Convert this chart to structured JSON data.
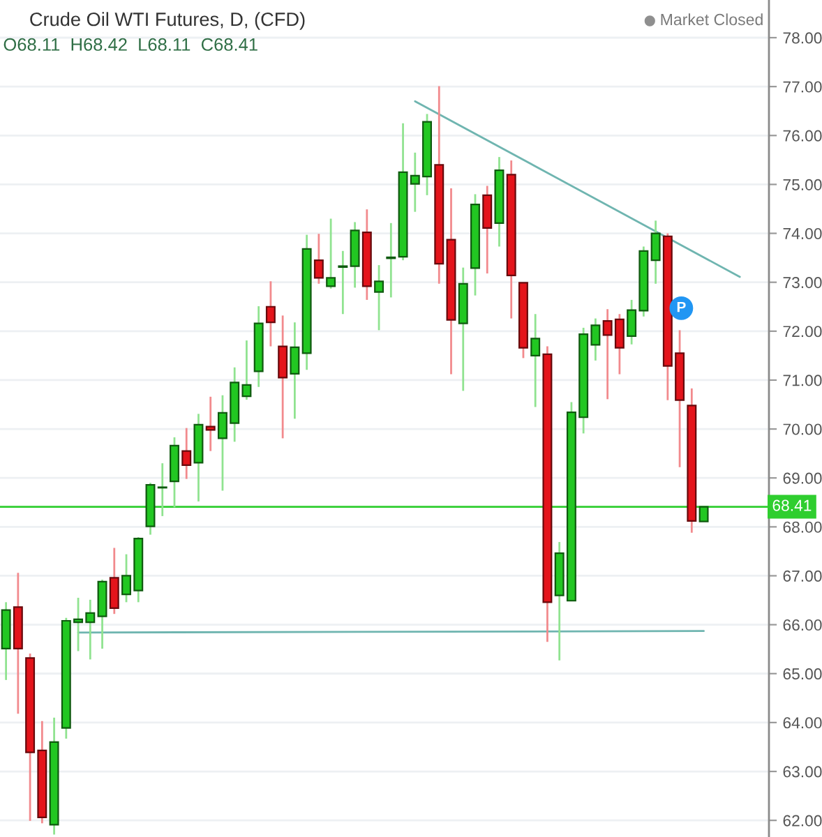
{
  "chart_data": {
    "type": "candlestick",
    "title": "Crude Oil WTI Futures, D, (CFD)",
    "subtitle": "O68.11  H68.42  L68.11  C68.41",
    "categories": [
      null,
      null,
      null,
      null,
      null,
      null,
      null,
      null,
      null,
      null,
      null,
      null,
      null,
      null,
      null,
      null,
      null,
      null,
      null,
      null,
      null,
      null,
      null,
      null,
      null,
      null,
      null,
      null,
      null,
      null,
      null,
      null,
      null,
      null,
      null,
      null,
      null,
      null,
      null,
      null,
      null,
      null,
      null,
      null,
      null,
      null,
      null,
      null,
      null,
      null,
      null,
      null,
      null,
      null,
      null,
      null,
      null,
      null,
      null,
      null,
      null,
      null
    ],
    "ohlc": [
      [
        65.51,
        66.46,
        64.87,
        66.3
      ],
      [
        66.36,
        67.06,
        64.18,
        65.51
      ],
      [
        65.32,
        65.41,
        61.99,
        63.39
      ],
      [
        63.43,
        64.03,
        61.94,
        62.06
      ],
      [
        61.91,
        64.1,
        61.71,
        63.6
      ],
      [
        63.89,
        66.14,
        63.67,
        66.08
      ],
      [
        66.05,
        66.55,
        65.46,
        66.11
      ],
      [
        66.05,
        66.51,
        65.29,
        66.24
      ],
      [
        66.17,
        66.92,
        65.51,
        66.88
      ],
      [
        66.96,
        67.57,
        66.22,
        66.34
      ],
      [
        66.62,
        67.44,
        66.46,
        67.0
      ],
      [
        66.7,
        67.79,
        66.46,
        67.76
      ],
      [
        68.01,
        68.9,
        67.84,
        68.86
      ],
      [
        68.8,
        69.3,
        68.22,
        68.81
      ],
      [
        68.93,
        69.83,
        68.4,
        69.66
      ],
      [
        69.55,
        70.02,
        68.98,
        69.26
      ],
      [
        69.31,
        70.31,
        68.52,
        70.09
      ],
      [
        70.05,
        70.66,
        69.55,
        69.98
      ],
      [
        69.81,
        70.69,
        68.74,
        70.33
      ],
      [
        70.12,
        71.26,
        69.74,
        70.95
      ],
      [
        70.67,
        71.81,
        70.6,
        70.9
      ],
      [
        71.18,
        72.51,
        70.86,
        72.16
      ],
      [
        72.5,
        73.02,
        71.69,
        72.18
      ],
      [
        71.69,
        72.32,
        69.81,
        71.05
      ],
      [
        71.13,
        72.18,
        70.21,
        71.67
      ],
      [
        71.55,
        73.97,
        71.21,
        73.68
      ],
      [
        73.45,
        73.99,
        72.97,
        73.09
      ],
      [
        72.92,
        74.3,
        72.87,
        73.09
      ],
      [
        73.31,
        73.64,
        72.35,
        73.33
      ],
      [
        73.33,
        74.23,
        72.89,
        74.06
      ],
      [
        74.02,
        74.49,
        72.64,
        72.92
      ],
      [
        72.8,
        73.35,
        72.02,
        73.02
      ],
      [
        73.49,
        74.21,
        72.69,
        73.51
      ],
      [
        73.52,
        76.25,
        73.45,
        75.25
      ],
      [
        75.01,
        75.65,
        74.44,
        75.18
      ],
      [
        75.16,
        76.44,
        74.78,
        76.28
      ],
      [
        75.4,
        77.01,
        72.97,
        73.38
      ],
      [
        73.87,
        74.92,
        71.12,
        72.23
      ],
      [
        72.16,
        73.3,
        70.78,
        72.97
      ],
      [
        73.29,
        74.8,
        72.73,
        74.59
      ],
      [
        74.78,
        74.97,
        73.18,
        74.11
      ],
      [
        74.21,
        75.56,
        73.73,
        75.29
      ],
      [
        75.2,
        75.49,
        72.26,
        73.14
      ],
      [
        72.99,
        72.99,
        71.45,
        71.66
      ],
      [
        71.5,
        72.35,
        70.45,
        71.85
      ],
      [
        71.53,
        71.69,
        65.65,
        66.46
      ],
      [
        66.6,
        67.69,
        65.27,
        67.46
      ],
      [
        66.49,
        70.55,
        66.49,
        70.34
      ],
      [
        70.24,
        72.07,
        69.91,
        71.94
      ],
      [
        71.72,
        72.26,
        71.4,
        72.12
      ],
      [
        72.21,
        72.45,
        70.61,
        71.92
      ],
      [
        72.24,
        72.35,
        71.12,
        71.66
      ],
      [
        71.9,
        72.64,
        71.73,
        72.43
      ],
      [
        72.42,
        73.73,
        72.3,
        73.64
      ],
      [
        73.45,
        74.26,
        72.97,
        74.0
      ],
      [
        73.94,
        74.0,
        70.59,
        71.29
      ],
      [
        71.55,
        72.02,
        69.22,
        70.59
      ],
      [
        70.48,
        70.83,
        67.88,
        68.12
      ],
      [
        68.11,
        68.42,
        68.11,
        68.41
      ],
      null,
      null,
      null
    ],
    "colors": [
      "#22c722",
      "#e4141b",
      "#e4141b",
      "#e4141b",
      "#22c722",
      "#22c722",
      "#22c722",
      "#22c722",
      "#22c722",
      "#e4141b",
      "#22c722",
      "#22c722",
      "#22c722",
      "#22c722",
      "#22c722",
      "#e4141b",
      "#22c722",
      "#e4141b",
      "#22c722",
      "#22c722",
      "#22c722",
      "#22c722",
      "#e4141b",
      "#e4141b",
      "#22c722",
      "#22c722",
      "#e4141b",
      "#22c722",
      "#22c722",
      "#22c722",
      "#e4141b",
      "#22c722",
      "#22c722",
      "#22c722",
      "#22c722",
      "#22c722",
      "#e4141b",
      "#e4141b",
      "#22c722",
      "#22c722",
      "#e4141b",
      "#22c722",
      "#e4141b",
      "#e4141b",
      "#22c722",
      "#e4141b",
      "#22c722",
      "#22c722",
      "#22c722",
      "#22c722",
      "#e4141b",
      "#e4141b",
      "#22c722",
      "#22c722",
      "#22c722",
      "#e4141b",
      "#e4141b",
      "#e4141b",
      "#22c722",
      null,
      null,
      null
    ],
    "series": [
      {
        "type": "line",
        "values": [
          null,
          null,
          null,
          null,
          null,
          null,
          null,
          null,
          null,
          null,
          null,
          null,
          null,
          null,
          null,
          null,
          null,
          null,
          null,
          null,
          null,
          null,
          null,
          null,
          null,
          null,
          null,
          null,
          null,
          null,
          null,
          null,
          null,
          null,
          76.7,
          null,
          null,
          null,
          null,
          null,
          null,
          null,
          null,
          null,
          null,
          null,
          null,
          null,
          null,
          null,
          null,
          null,
          null,
          null,
          null,
          null,
          null,
          null,
          null,
          null,
          null,
          73.11
        ],
        "color": "#6fb5b0"
      },
      {
        "type": "line",
        "values": [
          null,
          null,
          null,
          null,
          null,
          null,
          65.84,
          null,
          null,
          null,
          null,
          null,
          null,
          null,
          null,
          null,
          null,
          null,
          null,
          null,
          null,
          null,
          null,
          null,
          null,
          null,
          null,
          null,
          null,
          null,
          null,
          null,
          null,
          null,
          null,
          null,
          null,
          null,
          null,
          null,
          null,
          null,
          null,
          null,
          null,
          null,
          null,
          null,
          null,
          null,
          null,
          null,
          null,
          null,
          null,
          null,
          null,
          null,
          65.87,
          null,
          null,
          null
        ],
        "color": "#6fb5b0"
      }
    ],
    "ref_lines": [
      {
        "axis": "y",
        "value": 68.41,
        "label": "68.41",
        "color": "#2fce2f"
      }
    ],
    "annotations": [
      "Market Closed",
      {
        "text": "P",
        "y": 72.47
      }
    ],
    "ylim": [
      61.66,
      78.77
    ],
    "yticks": [
      {
        "value": 62,
        "label": "62.00"
      },
      {
        "value": 63,
        "label": "63.00"
      },
      {
        "value": 64,
        "label": "64.00"
      },
      {
        "value": 65,
        "label": "65.00"
      },
      {
        "value": 66,
        "label": "66.00"
      },
      {
        "value": 67,
        "label": "67.00"
      },
      {
        "value": 68,
        "label": "68.00"
      },
      {
        "value": 69,
        "label": "69.00"
      },
      {
        "value": 70,
        "label": "70.00"
      },
      {
        "value": 71,
        "label": "71.00"
      },
      {
        "value": 72,
        "label": "72.00"
      },
      {
        "value": 73,
        "label": "73.00"
      },
      {
        "value": 74,
        "label": "74.00"
      },
      {
        "value": 75,
        "label": "75.00"
      },
      {
        "value": 76,
        "label": "76.00"
      },
      {
        "value": 77,
        "label": "77.00"
      },
      {
        "value": 78,
        "label": "78.00"
      }
    ],
    "grid": "y",
    "tick_labels": "y"
  }
}
